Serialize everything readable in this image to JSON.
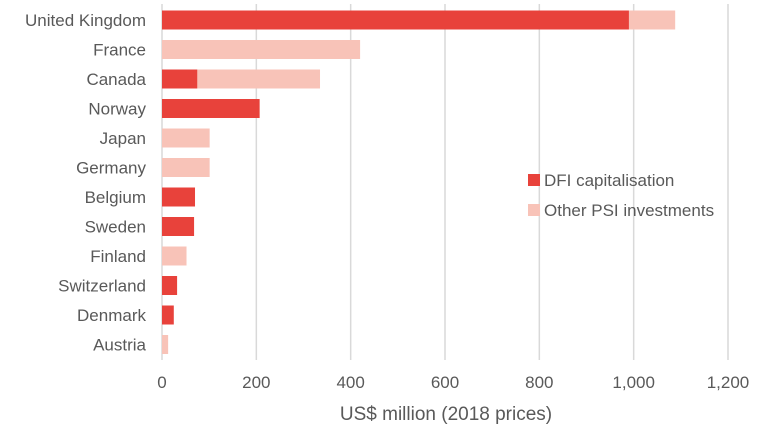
{
  "chart_data": {
    "type": "bar",
    "orientation": "horizontal",
    "stacked": true,
    "categories": [
      "United Kingdom",
      "France",
      "Canada",
      "Norway",
      "Japan",
      "Germany",
      "Belgium",
      "Sweden",
      "Finland",
      "Switzerland",
      "Denmark",
      "Austria"
    ],
    "series": [
      {
        "name": "DFI capitalisation",
        "color": "#E8423B",
        "values": [
          990,
          0,
          75,
          207,
          0,
          0,
          70,
          68,
          0,
          32,
          25,
          0
        ]
      },
      {
        "name": "Other PSI investments",
        "color": "#F8C3B8",
        "values": [
          98,
          420,
          260,
          0,
          101,
          101,
          0,
          0,
          52,
          0,
          0,
          13
        ]
      }
    ],
    "xlabel": "US$ million (2018 prices)",
    "ylabel": "",
    "xlim": [
      0,
      1200
    ],
    "xticks": [
      0,
      200,
      400,
      600,
      800,
      1000,
      1200
    ],
    "xtick_labels": [
      "0",
      "200",
      "400",
      "600",
      "800",
      "1,000",
      "1,200"
    ],
    "grid": "vertical",
    "legend_position": "right"
  }
}
